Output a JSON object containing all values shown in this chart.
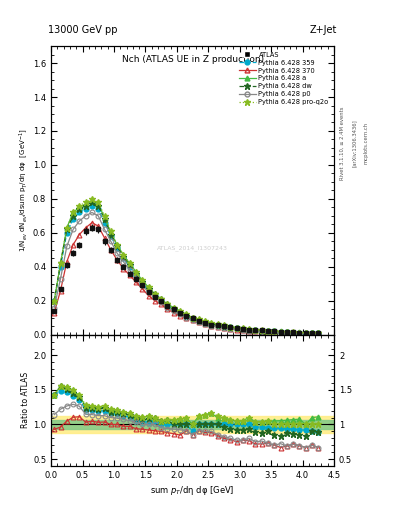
{
  "title_top": "13000 GeV pp",
  "title_right": "Z+Jet",
  "plot_title": "Nch (ATLAS UE in Z production)",
  "xlabel": "sum $p_T$/dη dφ [GeV]",
  "ylabel": "1/N$_{ev}$ dN$_{ev}$/dsum p$_T$/dη dφ  [GeV$^{-1}$]",
  "ylabel_ratio": "Ratio to ATLAS",
  "right_label1": "Rivet 3.1.10, ≥ 2.4M events",
  "right_label2": "[arXiv:1306.3436]",
  "right_label3": "mcplots.cern.ch",
  "xlim": [
    0,
    4.5
  ],
  "ylim_main": [
    0.0,
    1.7
  ],
  "ylim_ratio": [
    0.4,
    2.3
  ],
  "x_data": [
    0.05,
    0.15,
    0.25,
    0.35,
    0.45,
    0.55,
    0.65,
    0.75,
    0.85,
    0.95,
    1.05,
    1.15,
    1.25,
    1.35,
    1.45,
    1.55,
    1.65,
    1.75,
    1.85,
    1.95,
    2.05,
    2.15,
    2.25,
    2.35,
    2.45,
    2.55,
    2.65,
    2.75,
    2.85,
    2.95,
    3.05,
    3.15,
    3.25,
    3.35,
    3.45,
    3.55,
    3.65,
    3.75,
    3.85,
    3.95,
    4.05,
    4.15,
    4.25
  ],
  "atlas_y": [
    0.14,
    0.27,
    0.41,
    0.48,
    0.53,
    0.61,
    0.63,
    0.62,
    0.55,
    0.5,
    0.44,
    0.4,
    0.36,
    0.33,
    0.29,
    0.25,
    0.22,
    0.2,
    0.17,
    0.15,
    0.13,
    0.11,
    0.1,
    0.08,
    0.07,
    0.06,
    0.055,
    0.05,
    0.045,
    0.04,
    0.035,
    0.03,
    0.028,
    0.025,
    0.022,
    0.02,
    0.018,
    0.016,
    0.014,
    0.013,
    0.012,
    0.01,
    0.009
  ],
  "atlas_err": [
    0.012,
    0.012,
    0.018,
    0.018,
    0.018,
    0.022,
    0.022,
    0.022,
    0.022,
    0.018,
    0.018,
    0.014,
    0.014,
    0.012,
    0.012,
    0.012,
    0.012,
    0.012,
    0.01,
    0.01,
    0.008,
    0.007,
    0.007,
    0.006,
    0.006,
    0.005,
    0.005,
    0.005,
    0.004,
    0.004,
    0.004,
    0.004,
    0.004,
    0.003,
    0.003,
    0.003,
    0.003,
    0.003,
    0.003,
    0.003,
    0.002,
    0.002,
    0.001
  ],
  "py359_y": [
    0.2,
    0.4,
    0.6,
    0.68,
    0.72,
    0.74,
    0.76,
    0.74,
    0.66,
    0.58,
    0.51,
    0.45,
    0.4,
    0.35,
    0.3,
    0.26,
    0.23,
    0.2,
    0.17,
    0.15,
    0.13,
    0.11,
    0.09,
    0.08,
    0.07,
    0.06,
    0.055,
    0.05,
    0.045,
    0.04,
    0.035,
    0.03,
    0.027,
    0.024,
    0.021,
    0.019,
    0.017,
    0.015,
    0.013,
    0.012,
    0.011,
    0.009,
    0.008
  ],
  "py370_y": [
    0.13,
    0.26,
    0.43,
    0.53,
    0.59,
    0.63,
    0.66,
    0.64,
    0.57,
    0.5,
    0.44,
    0.39,
    0.35,
    0.31,
    0.27,
    0.23,
    0.2,
    0.18,
    0.15,
    0.13,
    0.11,
    0.1,
    0.085,
    0.073,
    0.062,
    0.053,
    0.046,
    0.04,
    0.035,
    0.03,
    0.027,
    0.023,
    0.02,
    0.018,
    0.016,
    0.014,
    0.012,
    0.011,
    0.01,
    0.009,
    0.008,
    0.007,
    0.006
  ],
  "pya_y": [
    0.2,
    0.42,
    0.63,
    0.72,
    0.75,
    0.77,
    0.79,
    0.77,
    0.69,
    0.6,
    0.53,
    0.47,
    0.42,
    0.37,
    0.32,
    0.28,
    0.24,
    0.21,
    0.18,
    0.16,
    0.14,
    0.12,
    0.1,
    0.09,
    0.08,
    0.07,
    0.06,
    0.055,
    0.048,
    0.042,
    0.037,
    0.033,
    0.029,
    0.026,
    0.023,
    0.021,
    0.019,
    0.017,
    0.015,
    0.014,
    0.012,
    0.011,
    0.01
  ],
  "pydw_y": [
    0.2,
    0.42,
    0.62,
    0.7,
    0.74,
    0.76,
    0.78,
    0.76,
    0.68,
    0.59,
    0.52,
    0.46,
    0.41,
    0.36,
    0.31,
    0.27,
    0.24,
    0.21,
    0.18,
    0.15,
    0.13,
    0.11,
    0.1,
    0.08,
    0.07,
    0.06,
    0.055,
    0.048,
    0.042,
    0.037,
    0.032,
    0.028,
    0.025,
    0.022,
    0.02,
    0.017,
    0.015,
    0.014,
    0.012,
    0.011,
    0.01,
    0.009,
    0.008
  ],
  "pyp0_y": [
    0.16,
    0.33,
    0.52,
    0.62,
    0.67,
    0.7,
    0.72,
    0.7,
    0.62,
    0.55,
    0.48,
    0.43,
    0.38,
    0.34,
    0.29,
    0.25,
    0.22,
    0.19,
    0.16,
    0.14,
    0.12,
    0.1,
    0.085,
    0.073,
    0.063,
    0.054,
    0.047,
    0.041,
    0.036,
    0.031,
    0.027,
    0.024,
    0.021,
    0.019,
    0.016,
    0.014,
    0.013,
    0.011,
    0.01,
    0.009,
    0.008,
    0.007,
    0.006
  ],
  "pyproq2o_y": [
    0.2,
    0.42,
    0.63,
    0.72,
    0.76,
    0.78,
    0.8,
    0.78,
    0.7,
    0.61,
    0.53,
    0.47,
    0.42,
    0.37,
    0.32,
    0.28,
    0.24,
    0.21,
    0.18,
    0.16,
    0.14,
    0.12,
    0.1,
    0.09,
    0.08,
    0.07,
    0.062,
    0.055,
    0.048,
    0.042,
    0.037,
    0.033,
    0.029,
    0.026,
    0.023,
    0.02,
    0.018,
    0.016,
    0.014,
    0.013,
    0.012,
    0.01,
    0.009
  ],
  "color_359": "#00AACC",
  "color_370": "#CC3333",
  "color_a": "#44BB44",
  "color_dw": "#226622",
  "color_p0": "#888888",
  "color_proq2o": "#88BB22",
  "color_atlas": "#111111",
  "watermark": "ATLAS_2014_I1307243",
  "bg_color": "#ffffff"
}
